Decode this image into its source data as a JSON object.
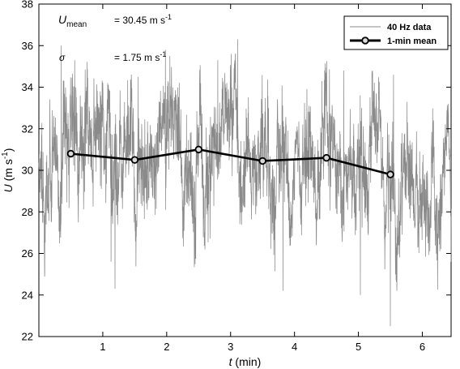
{
  "chart_data": {
    "type": "line",
    "xlim": [
      0,
      6.45
    ],
    "ylim": [
      22,
      38
    ],
    "x_ticks": [
      1,
      2,
      3,
      4,
      5,
      6
    ],
    "x_tick_labels": [
      "1",
      "2",
      "3",
      "4",
      "5",
      "6"
    ],
    "y_ticks": [
      22,
      24,
      26,
      28,
      30,
      32,
      34,
      36,
      38
    ],
    "y_tick_labels": [
      "22",
      "24",
      "26",
      "28",
      "30",
      "32",
      "34",
      "36",
      "38"
    ],
    "xlabel": {
      "symbol": "t",
      "unit": " (min)"
    },
    "ylabel": {
      "symbol": "U",
      "unit_open": " (m s",
      "unit_sup": "-1",
      "unit_close": ")"
    },
    "grid": false,
    "legend_position": "top-right",
    "annotations": {
      "mean": {
        "symbol": "U",
        "subscript": "mean",
        "value": "= 30.45 m s",
        "sup": "-1"
      },
      "sigma": {
        "symbol": "σ",
        "value": "= 1.75 m s",
        "sup": "-1"
      }
    },
    "colors": {
      "raw": "#8a8a8a",
      "mean": "#000000",
      "marker_fill": "#d9d9d9"
    },
    "series": [
      {
        "name": "40 Hz data",
        "style": "thin-gray-line",
        "sampling_hz": 40,
        "mean": 30.45,
        "std": 1.75,
        "extremes": [
          {
            "x": 0.35,
            "y": 36.0
          },
          {
            "x": 0.56,
            "y": 35.3
          },
          {
            "x": 1.13,
            "y": 25.6
          },
          {
            "x": 1.19,
            "y": 24.3
          },
          {
            "x": 1.55,
            "y": 34.5
          },
          {
            "x": 1.98,
            "y": 35.8
          },
          {
            "x": 2.05,
            "y": 35.5
          },
          {
            "x": 2.8,
            "y": 35.3
          },
          {
            "x": 3.11,
            "y": 36.3
          },
          {
            "x": 3.82,
            "y": 24.2
          },
          {
            "x": 4.77,
            "y": 34.8
          },
          {
            "x": 5.03,
            "y": 24.0
          },
          {
            "x": 5.5,
            "y": 22.5
          },
          {
            "x": 5.55,
            "y": 34.6
          }
        ]
      },
      {
        "name": "1-min mean",
        "style": "thick-black-line-circle-markers",
        "x": [
          0.5,
          1.5,
          2.5,
          3.5,
          4.5,
          5.5
        ],
        "y": [
          30.8,
          30.5,
          31.0,
          30.45,
          30.6,
          29.8
        ]
      }
    ]
  }
}
